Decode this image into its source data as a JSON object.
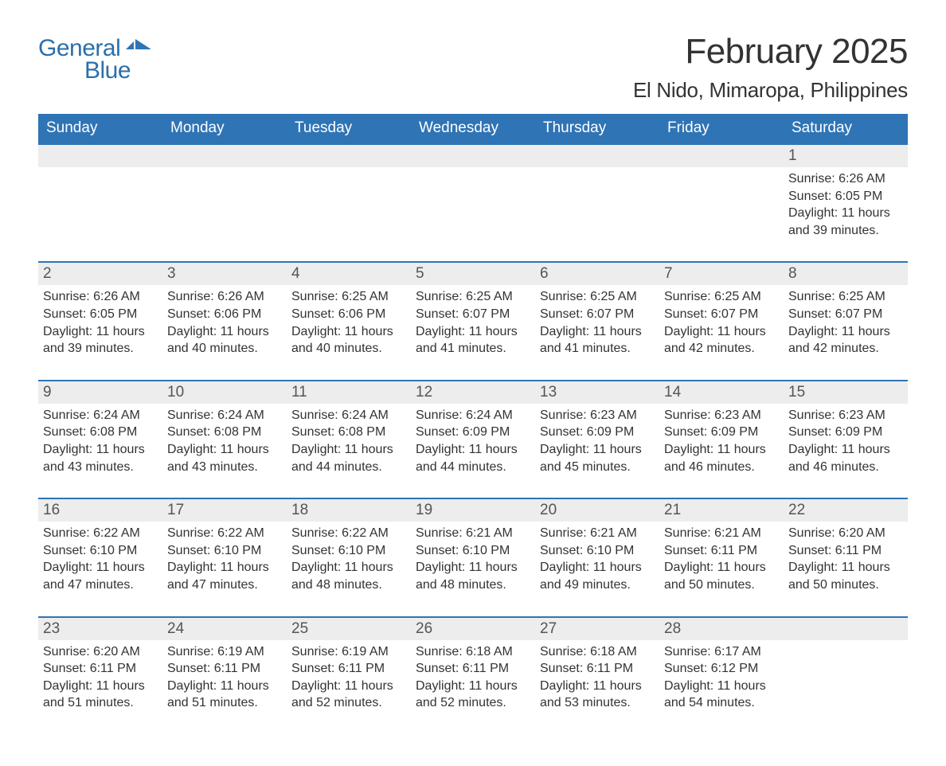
{
  "logo": {
    "word1": "General",
    "word2": "Blue",
    "flag_color": "#2f74b5"
  },
  "title": "February 2025",
  "location": "El Nido, Mimaropa, Philippines",
  "colors": {
    "header_bg": "#2f74b5",
    "header_text": "#ffffff",
    "daynum_bg": "#ededed",
    "row_border": "#2f74b5",
    "text": "#333333",
    "logo": "#2b6fab"
  },
  "weekdays": [
    "Sunday",
    "Monday",
    "Tuesday",
    "Wednesday",
    "Thursday",
    "Friday",
    "Saturday"
  ],
  "weeks": [
    {
      "days": [
        null,
        null,
        null,
        null,
        null,
        null,
        {
          "n": "1",
          "sunrise": "Sunrise: 6:26 AM",
          "sunset": "Sunset: 6:05 PM",
          "day1": "Daylight: 11 hours",
          "day2": "and 39 minutes."
        }
      ]
    },
    {
      "days": [
        {
          "n": "2",
          "sunrise": "Sunrise: 6:26 AM",
          "sunset": "Sunset: 6:05 PM",
          "day1": "Daylight: 11 hours",
          "day2": "and 39 minutes."
        },
        {
          "n": "3",
          "sunrise": "Sunrise: 6:26 AM",
          "sunset": "Sunset: 6:06 PM",
          "day1": "Daylight: 11 hours",
          "day2": "and 40 minutes."
        },
        {
          "n": "4",
          "sunrise": "Sunrise: 6:25 AM",
          "sunset": "Sunset: 6:06 PM",
          "day1": "Daylight: 11 hours",
          "day2": "and 40 minutes."
        },
        {
          "n": "5",
          "sunrise": "Sunrise: 6:25 AM",
          "sunset": "Sunset: 6:07 PM",
          "day1": "Daylight: 11 hours",
          "day2": "and 41 minutes."
        },
        {
          "n": "6",
          "sunrise": "Sunrise: 6:25 AM",
          "sunset": "Sunset: 6:07 PM",
          "day1": "Daylight: 11 hours",
          "day2": "and 41 minutes."
        },
        {
          "n": "7",
          "sunrise": "Sunrise: 6:25 AM",
          "sunset": "Sunset: 6:07 PM",
          "day1": "Daylight: 11 hours",
          "day2": "and 42 minutes."
        },
        {
          "n": "8",
          "sunrise": "Sunrise: 6:25 AM",
          "sunset": "Sunset: 6:07 PM",
          "day1": "Daylight: 11 hours",
          "day2": "and 42 minutes."
        }
      ]
    },
    {
      "days": [
        {
          "n": "9",
          "sunrise": "Sunrise: 6:24 AM",
          "sunset": "Sunset: 6:08 PM",
          "day1": "Daylight: 11 hours",
          "day2": "and 43 minutes."
        },
        {
          "n": "10",
          "sunrise": "Sunrise: 6:24 AM",
          "sunset": "Sunset: 6:08 PM",
          "day1": "Daylight: 11 hours",
          "day2": "and 43 minutes."
        },
        {
          "n": "11",
          "sunrise": "Sunrise: 6:24 AM",
          "sunset": "Sunset: 6:08 PM",
          "day1": "Daylight: 11 hours",
          "day2": "and 44 minutes."
        },
        {
          "n": "12",
          "sunrise": "Sunrise: 6:24 AM",
          "sunset": "Sunset: 6:09 PM",
          "day1": "Daylight: 11 hours",
          "day2": "and 44 minutes."
        },
        {
          "n": "13",
          "sunrise": "Sunrise: 6:23 AM",
          "sunset": "Sunset: 6:09 PM",
          "day1": "Daylight: 11 hours",
          "day2": "and 45 minutes."
        },
        {
          "n": "14",
          "sunrise": "Sunrise: 6:23 AM",
          "sunset": "Sunset: 6:09 PM",
          "day1": "Daylight: 11 hours",
          "day2": "and 46 minutes."
        },
        {
          "n": "15",
          "sunrise": "Sunrise: 6:23 AM",
          "sunset": "Sunset: 6:09 PM",
          "day1": "Daylight: 11 hours",
          "day2": "and 46 minutes."
        }
      ]
    },
    {
      "days": [
        {
          "n": "16",
          "sunrise": "Sunrise: 6:22 AM",
          "sunset": "Sunset: 6:10 PM",
          "day1": "Daylight: 11 hours",
          "day2": "and 47 minutes."
        },
        {
          "n": "17",
          "sunrise": "Sunrise: 6:22 AM",
          "sunset": "Sunset: 6:10 PM",
          "day1": "Daylight: 11 hours",
          "day2": "and 47 minutes."
        },
        {
          "n": "18",
          "sunrise": "Sunrise: 6:22 AM",
          "sunset": "Sunset: 6:10 PM",
          "day1": "Daylight: 11 hours",
          "day2": "and 48 minutes."
        },
        {
          "n": "19",
          "sunrise": "Sunrise: 6:21 AM",
          "sunset": "Sunset: 6:10 PM",
          "day1": "Daylight: 11 hours",
          "day2": "and 48 minutes."
        },
        {
          "n": "20",
          "sunrise": "Sunrise: 6:21 AM",
          "sunset": "Sunset: 6:10 PM",
          "day1": "Daylight: 11 hours",
          "day2": "and 49 minutes."
        },
        {
          "n": "21",
          "sunrise": "Sunrise: 6:21 AM",
          "sunset": "Sunset: 6:11 PM",
          "day1": "Daylight: 11 hours",
          "day2": "and 50 minutes."
        },
        {
          "n": "22",
          "sunrise": "Sunrise: 6:20 AM",
          "sunset": "Sunset: 6:11 PM",
          "day1": "Daylight: 11 hours",
          "day2": "and 50 minutes."
        }
      ]
    },
    {
      "days": [
        {
          "n": "23",
          "sunrise": "Sunrise: 6:20 AM",
          "sunset": "Sunset: 6:11 PM",
          "day1": "Daylight: 11 hours",
          "day2": "and 51 minutes."
        },
        {
          "n": "24",
          "sunrise": "Sunrise: 6:19 AM",
          "sunset": "Sunset: 6:11 PM",
          "day1": "Daylight: 11 hours",
          "day2": "and 51 minutes."
        },
        {
          "n": "25",
          "sunrise": "Sunrise: 6:19 AM",
          "sunset": "Sunset: 6:11 PM",
          "day1": "Daylight: 11 hours",
          "day2": "and 52 minutes."
        },
        {
          "n": "26",
          "sunrise": "Sunrise: 6:18 AM",
          "sunset": "Sunset: 6:11 PM",
          "day1": "Daylight: 11 hours",
          "day2": "and 52 minutes."
        },
        {
          "n": "27",
          "sunrise": "Sunrise: 6:18 AM",
          "sunset": "Sunset: 6:11 PM",
          "day1": "Daylight: 11 hours",
          "day2": "and 53 minutes."
        },
        {
          "n": "28",
          "sunrise": "Sunrise: 6:17 AM",
          "sunset": "Sunset: 6:12 PM",
          "day1": "Daylight: 11 hours",
          "day2": "and 54 minutes."
        },
        null
      ]
    }
  ]
}
